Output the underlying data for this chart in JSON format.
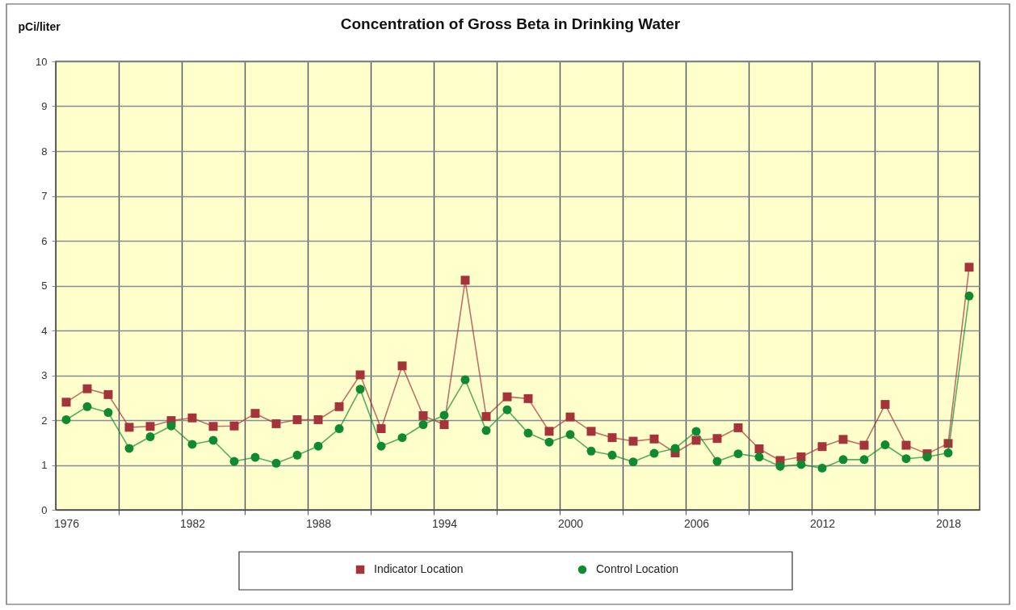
{
  "chart_data": {
    "type": "line",
    "title": "Concentration of Gross Beta in Drinking Water",
    "ylabel": "pCi/liter",
    "x": [
      1976,
      1977,
      1978,
      1979,
      1980,
      1981,
      1982,
      1983,
      1984,
      1985,
      1986,
      1987,
      1988,
      1989,
      1990,
      1991,
      1992,
      1993,
      1994,
      1995,
      1996,
      1997,
      1998,
      1999,
      2000,
      2001,
      2002,
      2003,
      2004,
      2005,
      2006,
      2007,
      2008,
      2009,
      2010,
      2011,
      2012,
      2013,
      2014,
      2015,
      2016,
      2017,
      2018,
      2019
    ],
    "xlim": [
      1975.5,
      2019.5
    ],
    "xticks": [
      1976,
      {
        "value": 1978.5,
        "label": null
      },
      {
        "value": 1981.5,
        "label": null
      },
      1982,
      {
        "value": 1984.5,
        "label": null
      },
      {
        "value": 1987.5,
        "label": null
      },
      1988,
      {
        "value": 1990.5,
        "label": null
      },
      {
        "value": 1993.5,
        "label": null
      },
      1994,
      {
        "value": 1996.5,
        "label": null
      },
      {
        "value": 1999.5,
        "label": null
      },
      2000,
      {
        "value": 2002.5,
        "label": null
      },
      {
        "value": 2005.5,
        "label": null
      },
      2006,
      {
        "value": 2008.5,
        "label": null
      },
      {
        "value": 2011.5,
        "label": null
      },
      2012,
      {
        "value": 2014.5,
        "label": null
      },
      {
        "value": 2017.5,
        "label": null
      },
      2018
    ],
    "ylim": [
      0,
      10
    ],
    "yticks": [
      0,
      1,
      2,
      3,
      4,
      5,
      6,
      7,
      8,
      9,
      10
    ],
    "grid": true,
    "legend": "bottom",
    "line_style": "solid",
    "series": [
      {
        "name": "Indicator Location",
        "color": "#a5333a",
        "marker": "square",
        "values": [
          2.4,
          2.7,
          2.57,
          1.84,
          1.86,
          1.99,
          2.05,
          1.86,
          1.87,
          2.15,
          1.92,
          2.01,
          2.01,
          2.3,
          3.01,
          1.81,
          3.21,
          2.1,
          1.9,
          5.12,
          2.08,
          2.52,
          2.48,
          1.75,
          2.07,
          1.75,
          1.61,
          1.53,
          1.58,
          1.27,
          1.55,
          1.59,
          1.83,
          1.36,
          1.1,
          1.18,
          1.41,
          1.57,
          1.44,
          2.35,
          1.44,
          1.25,
          1.48,
          5.41
        ]
      },
      {
        "name": "Control Location",
        "color": "#0e8a30",
        "marker": "circle",
        "values": [
          2.01,
          2.3,
          2.17,
          1.37,
          1.63,
          1.87,
          1.46,
          1.55,
          1.08,
          1.17,
          1.04,
          1.22,
          1.42,
          1.81,
          2.69,
          1.42,
          1.61,
          1.9,
          2.11,
          2.9,
          1.77,
          2.23,
          1.71,
          1.51,
          1.68,
          1.31,
          1.22,
          1.07,
          1.26,
          1.37,
          1.75,
          1.08,
          1.25,
          1.18,
          0.97,
          1.01,
          0.93,
          1.12,
          1.12,
          1.45,
          1.14,
          1.18,
          1.27,
          4.77
        ]
      }
    ]
  }
}
